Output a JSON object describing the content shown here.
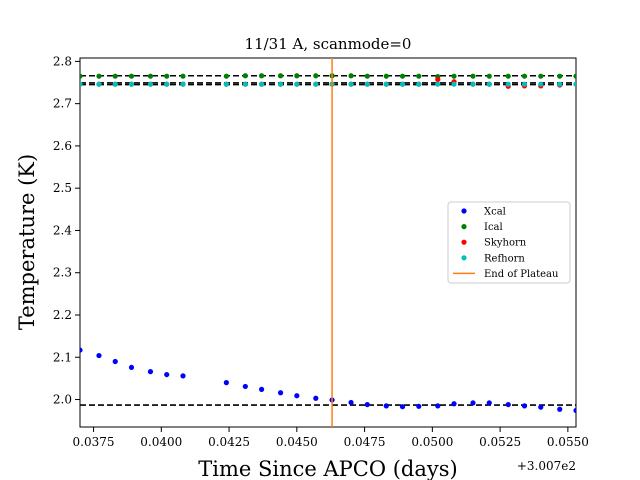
{
  "chart_data": {
    "type": "scatter",
    "title": "11/31 A, scanmode=0",
    "xlabel": "Time Since APCO (days)",
    "ylabel": "Temperature (K)",
    "x_offset_label": "+3.007e2",
    "xlim": [
      0.037,
      0.0553
    ],
    "ylim": [
      1.935,
      2.808
    ],
    "xticks": [
      0.0375,
      0.04,
      0.0425,
      0.045,
      0.0475,
      0.05,
      0.0525,
      0.055
    ],
    "xtick_labels": [
      "0.0375",
      "0.0400",
      "0.0425",
      "0.0450",
      "0.0475",
      "0.0500",
      "0.0525",
      "0.0550"
    ],
    "yticks": [
      2.0,
      2.1,
      2.2,
      2.3,
      2.4,
      2.5,
      2.6,
      2.7,
      2.8
    ],
    "ytick_labels": [
      "2.0",
      "2.1",
      "2.2",
      "2.3",
      "2.4",
      "2.5",
      "2.6",
      "2.7",
      "2.8"
    ],
    "grid": false,
    "legend_placement": "center-right",
    "series": [
      {
        "name": "Xcal",
        "color": "#0000ff",
        "kind": "points",
        "x": [
          0.037,
          0.0377,
          0.0383,
          0.0389,
          0.0396,
          0.0402,
          0.0408,
          0.0424,
          0.0431,
          0.0437,
          0.0444,
          0.045,
          0.0457,
          0.0463,
          0.047,
          0.0476,
          0.0483,
          0.0489,
          0.0495,
          0.0502,
          0.0508,
          0.0515,
          0.0521,
          0.0528,
          0.0534,
          0.054,
          0.0547,
          0.0553
        ],
        "y": [
          2.117,
          2.104,
          2.09,
          2.076,
          2.066,
          2.059,
          2.056,
          2.04,
          2.031,
          2.024,
          2.016,
          2.009,
          2.003,
          1.999,
          1.993,
          1.988,
          1.985,
          1.983,
          1.984,
          1.985,
          1.99,
          1.992,
          1.992,
          1.988,
          1.985,
          1.982,
          1.977,
          1.974
        ]
      },
      {
        "name": "Ical",
        "color": "#008000",
        "kind": "points",
        "x": [
          0.037,
          0.0377,
          0.0383,
          0.0389,
          0.0396,
          0.0402,
          0.0408,
          0.0424,
          0.0431,
          0.0437,
          0.0444,
          0.045,
          0.0457,
          0.0463,
          0.047,
          0.0476,
          0.0483,
          0.0489,
          0.0495,
          0.0502,
          0.0508,
          0.0515,
          0.0521,
          0.0528,
          0.0534,
          0.054,
          0.0547,
          0.0553
        ],
        "y": [
          2.765,
          2.765,
          2.765,
          2.765,
          2.765,
          2.765,
          2.765,
          2.765,
          2.766,
          2.766,
          2.766,
          2.766,
          2.766,
          2.766,
          2.766,
          2.765,
          2.765,
          2.765,
          2.765,
          2.764,
          2.765,
          2.765,
          2.765,
          2.765,
          2.765,
          2.765,
          2.765,
          2.765
        ]
      },
      {
        "name": "Skyhorn",
        "color": "#ff0000",
        "kind": "points",
        "x": [
          0.037,
          0.0377,
          0.0383,
          0.0389,
          0.0396,
          0.0402,
          0.0408,
          0.0424,
          0.0431,
          0.0437,
          0.0444,
          0.045,
          0.0457,
          0.0463,
          0.047,
          0.0476,
          0.0483,
          0.0489,
          0.0495,
          0.0502,
          0.0508,
          0.0515,
          0.0521,
          0.0528,
          0.0534,
          0.054,
          0.0547,
          0.0553
        ],
        "y": [
          2.746,
          2.746,
          2.746,
          2.746,
          2.746,
          2.746,
          2.746,
          2.746,
          2.746,
          2.746,
          2.746,
          2.746,
          2.746,
          2.746,
          2.746,
          2.746,
          2.746,
          2.746,
          2.746,
          2.757,
          2.752,
          2.746,
          2.746,
          2.741,
          2.742,
          2.742,
          2.744,
          2.746
        ]
      },
      {
        "name": "Refhorn",
        "color": "#00bfbf",
        "kind": "points",
        "x": [
          0.037,
          0.0377,
          0.0383,
          0.0389,
          0.0396,
          0.0402,
          0.0408,
          0.0424,
          0.0431,
          0.0437,
          0.0444,
          0.045,
          0.0457,
          0.0463,
          0.047,
          0.0476,
          0.0483,
          0.0489,
          0.0495,
          0.0502,
          0.0508,
          0.0515,
          0.0521,
          0.0528,
          0.0534,
          0.054,
          0.0547,
          0.0553
        ],
        "y": [
          2.746,
          2.746,
          2.746,
          2.746,
          2.746,
          2.746,
          2.746,
          2.746,
          2.746,
          2.746,
          2.746,
          2.746,
          2.746,
          2.746,
          2.746,
          2.746,
          2.746,
          2.746,
          2.746,
          2.746,
          2.746,
          2.746,
          2.746,
          2.746,
          2.746,
          2.746,
          2.746,
          2.746
        ]
      },
      {
        "name": "End of Plateau",
        "color": "#ff7f0e",
        "kind": "vline",
        "x": 0.0463
      }
    ],
    "reference_lines": [
      {
        "y": 2.766,
        "color": "#000000",
        "style": "dashed"
      },
      {
        "y": 2.749,
        "color": "#000000",
        "style": "dashed"
      },
      {
        "y": 2.745,
        "color": "#000000",
        "style": "dashed"
      },
      {
        "y": 1.987,
        "color": "#000000",
        "style": "dashed"
      }
    ]
  }
}
